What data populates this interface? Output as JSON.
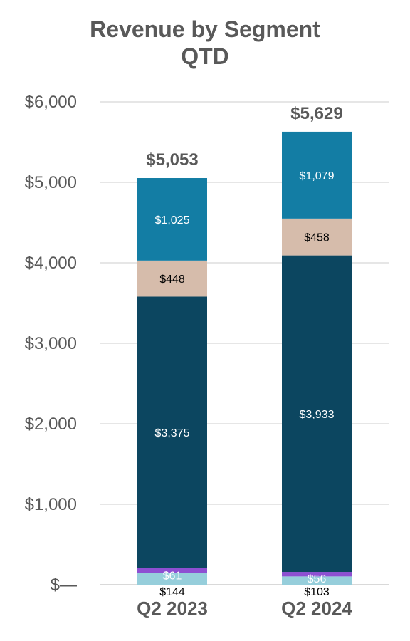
{
  "chart_data": {
    "type": "bar",
    "stacked": true,
    "title": "Revenue by Segment",
    "subtitle": "QTD",
    "categories": [
      "Q2 2023",
      "Q2 2024"
    ],
    "y_ticks": [
      "$—",
      "$1,000",
      "$2,000",
      "$3,000",
      "$4,000",
      "$5,000",
      "$6,000"
    ],
    "ylim": [
      0,
      6000
    ],
    "grid": true,
    "series": [
      {
        "values": [
          144,
          103
        ],
        "labels": [
          "$144",
          "$103"
        ],
        "color": "#96cedb",
        "label_color": "#000000"
      },
      {
        "values": [
          61,
          56
        ],
        "labels": [
          "$61",
          "$56"
        ],
        "color": "#8e4fd2",
        "label_color": "#ffffff"
      },
      {
        "values": [
          3375,
          3933
        ],
        "labels": [
          "$3,375",
          "$3,933"
        ],
        "color": "#0c4660",
        "label_color": "#ffffff"
      },
      {
        "values": [
          448,
          458
        ],
        "labels": [
          "$448",
          "$458"
        ],
        "color": "#d6bcab",
        "label_color": "#000000"
      },
      {
        "values": [
          1025,
          1079
        ],
        "labels": [
          "$1,025",
          "$1,079"
        ],
        "color": "#137da4",
        "label_color": "#ffffff"
      }
    ],
    "totals": [
      "$5,053",
      "$5,629"
    ]
  }
}
